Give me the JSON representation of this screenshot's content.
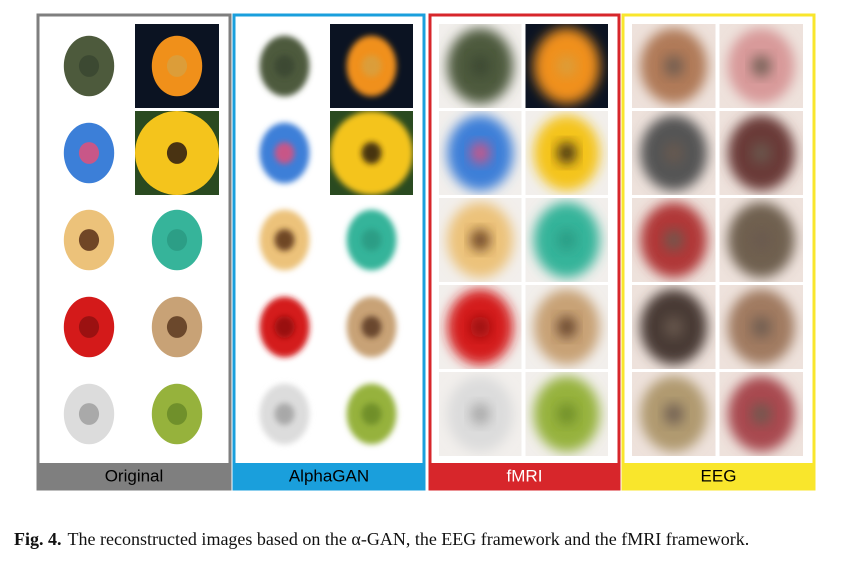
{
  "panels": [
    {
      "label": "Original"
    },
    {
      "label": "AlphaGAN"
    },
    {
      "label": "fMRI"
    },
    {
      "label": "EEG"
    }
  ],
  "caption": {
    "label": "Fig. 4.",
    "text": "The reconstructed images based on the α-GAN, the EEG framework and the fMRI framework."
  }
}
